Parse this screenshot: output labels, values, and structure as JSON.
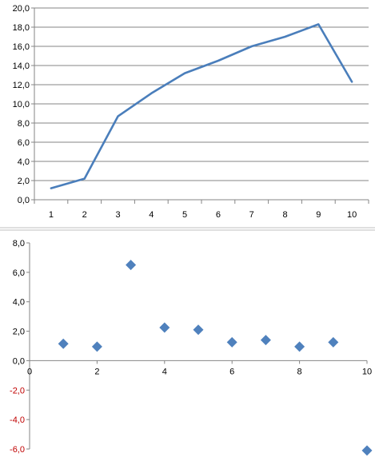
{
  "chart_data": [
    {
      "type": "line",
      "x": [
        1,
        2,
        3,
        4,
        5,
        6,
        7,
        8,
        9,
        10
      ],
      "series": [
        {
          "values": [
            1.2,
            2.2,
            8.7,
            11.1,
            13.2,
            14.5,
            16.0,
            17.0,
            18.3,
            12.3
          ]
        }
      ],
      "ylim": [
        0,
        20
      ],
      "y_ticks": [
        "0,0",
        "2,0",
        "4,0",
        "6,0",
        "8,0",
        "10,0",
        "12,0",
        "14,0",
        "16,0",
        "18,0",
        "20,0"
      ],
      "x_ticks": [
        "1",
        "2",
        "3",
        "4",
        "5",
        "6",
        "7",
        "8",
        "9",
        "10"
      ],
      "grid": true,
      "colors": {
        "line": "#4a7ebb",
        "grid": "#868686"
      }
    },
    {
      "type": "scatter",
      "points": [
        {
          "x": 1,
          "y": 1.15
        },
        {
          "x": 2,
          "y": 0.95
        },
        {
          "x": 3,
          "y": 6.5
        },
        {
          "x": 4,
          "y": 2.25
        },
        {
          "x": 5,
          "y": 2.1
        },
        {
          "x": 6,
          "y": 1.25
        },
        {
          "x": 7,
          "y": 1.4
        },
        {
          "x": 8,
          "y": 0.95
        },
        {
          "x": 9,
          "y": 1.25
        },
        {
          "x": 10,
          "y": -6.1
        }
      ],
      "xlim": [
        0,
        10
      ],
      "ylim": [
        -6,
        8
      ],
      "y_ticks": [
        "8,0",
        "6,0",
        "4,0",
        "2,0",
        "0,0",
        "-2,0",
        "-4,0",
        "-6,0"
      ],
      "x_ticks": [
        "0",
        "2",
        "4",
        "6",
        "8",
        "10"
      ],
      "grid": false,
      "colors": {
        "marker": "#4f81bd",
        "negative_tick": "#c00000"
      }
    }
  ]
}
